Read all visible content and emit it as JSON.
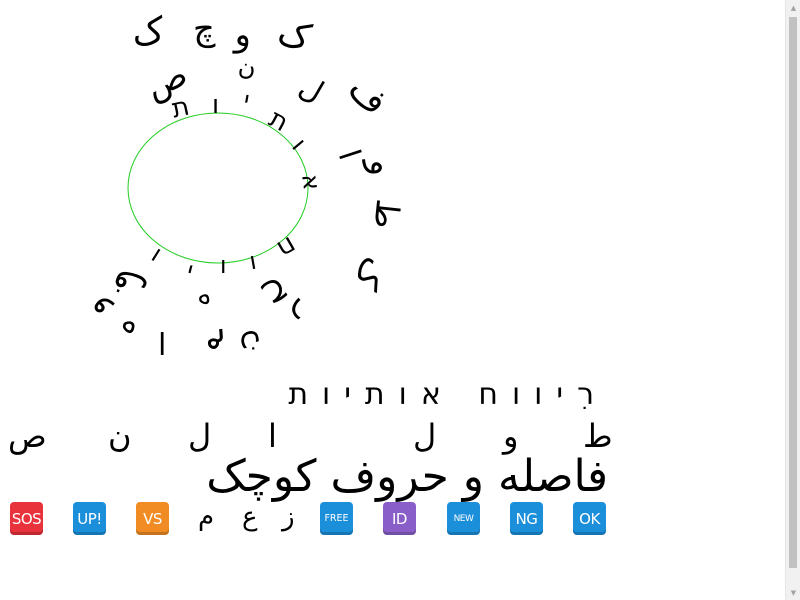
{
  "circle_text": {
    "outer": [
      "ک",
      "چ",
      "و",
      "ک",
      "ص",
      "ن",
      "ل",
      "ف",
      "ا",
      "و",
      "ط",
      "ک",
      "ح",
      "ر",
      "و",
      "ف"
    ],
    "inner": [
      "ת",
      "ו",
      "י",
      "ת",
      "ו",
      "א",
      "ח",
      "ו",
      "ו",
      "י",
      "ו",
      "ר",
      "ו",
      "ע"
    ],
    "bottom": [
      "ه",
      "ا",
      "ه",
      "م",
      "ن",
      "ع",
      "ز"
    ]
  },
  "lines": {
    "hebrew": "רִיווח אותיות",
    "spaced": [
      "ص",
      "ن",
      "ل",
      "ا",
      "ل",
      "و",
      "ط"
    ],
    "persian": "فاصله و حروف کوچک"
  },
  "badges": [
    {
      "label": "SOS",
      "color": "#e8323c",
      "icon": "sos-icon"
    },
    {
      "label": "UP!",
      "color": "#1c8fdb",
      "icon": "up-icon"
    },
    {
      "label": "VS",
      "color": "#f08c23",
      "icon": "vs-icon"
    },
    {
      "label": "FREE",
      "color": "#1c8fdb",
      "icon": "free-icon"
    },
    {
      "label": "ID",
      "color": "#8a5ec8",
      "icon": "id-icon"
    },
    {
      "label": "NEW",
      "color": "#1c8fdb",
      "icon": "new-icon"
    },
    {
      "label": "NG",
      "color": "#1c8fdb",
      "icon": "ng-icon"
    },
    {
      "label": "OK",
      "color": "#1c8fdb",
      "icon": "ok-icon"
    }
  ],
  "loose_letters": [
    "م",
    "ع",
    "ز"
  ],
  "colors": {
    "circle": "#22cc22",
    "text": "#000000"
  }
}
